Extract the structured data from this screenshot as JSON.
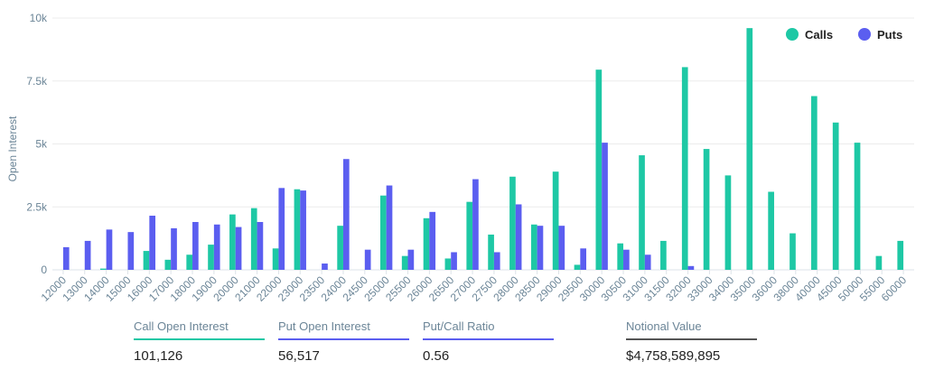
{
  "chart_data": {
    "type": "bar",
    "y_label": "Open Interest",
    "categories": [
      "12000",
      "13000",
      "14000",
      "15000",
      "16000",
      "17000",
      "18000",
      "19000",
      "20000",
      "21000",
      "22000",
      "23000",
      "23500",
      "24000",
      "24500",
      "25000",
      "25500",
      "26000",
      "26500",
      "27000",
      "27500",
      "28000",
      "28500",
      "29000",
      "29500",
      "30000",
      "30500",
      "31000",
      "31500",
      "32000",
      "33000",
      "34000",
      "35000",
      "36000",
      "38000",
      "40000",
      "45000",
      "50000",
      "55000",
      "60000"
    ],
    "series": [
      {
        "name": "Calls",
        "color": "#1ec8a5",
        "values": [
          0,
          0,
          50,
          0,
          750,
          400,
          600,
          1000,
          2200,
          2450,
          850,
          3200,
          0,
          1750,
          0,
          2950,
          550,
          2050,
          450,
          2700,
          1400,
          3700,
          1800,
          3900,
          200,
          7950,
          1050,
          4550,
          1150,
          8050,
          4800,
          3750,
          9600,
          3100,
          1450,
          6900,
          5850,
          5050,
          550,
          1150
        ]
      },
      {
        "name": "Puts",
        "color": "#5b5ef0",
        "values": [
          900,
          1150,
          1600,
          1500,
          2150,
          1650,
          1900,
          1800,
          1700,
          1900,
          3250,
          3150,
          250,
          4400,
          800,
          3350,
          800,
          2300,
          700,
          3600,
          700,
          2600,
          1750,
          1750,
          850,
          5050,
          800,
          600,
          0,
          150,
          0,
          0,
          0,
          0,
          0,
          0,
          0,
          0,
          0,
          0
        ]
      }
    ],
    "ylim": [
      0,
      10000
    ],
    "yticks": [
      0,
      {
        "value": 2500,
        "label": "2.5k"
      },
      {
        "value": 5000,
        "label": "5k"
      },
      {
        "value": 7500,
        "label": "7.5k"
      },
      {
        "value": 10000,
        "label": "10k"
      }
    ],
    "grid": true,
    "legend": "top-right"
  },
  "stats": [
    {
      "label": "Call Open Interest",
      "value": "101,126",
      "color": "#1ec8a5"
    },
    {
      "label": "Put Open Interest",
      "value": "56,517",
      "color": "#5b5ef0"
    },
    {
      "label": "Put/Call Ratio",
      "value": "0.56",
      "color": "#5b5ef0"
    },
    {
      "label": "Notional Value",
      "value": "$4,758,589,895",
      "color": "#555555"
    }
  ]
}
